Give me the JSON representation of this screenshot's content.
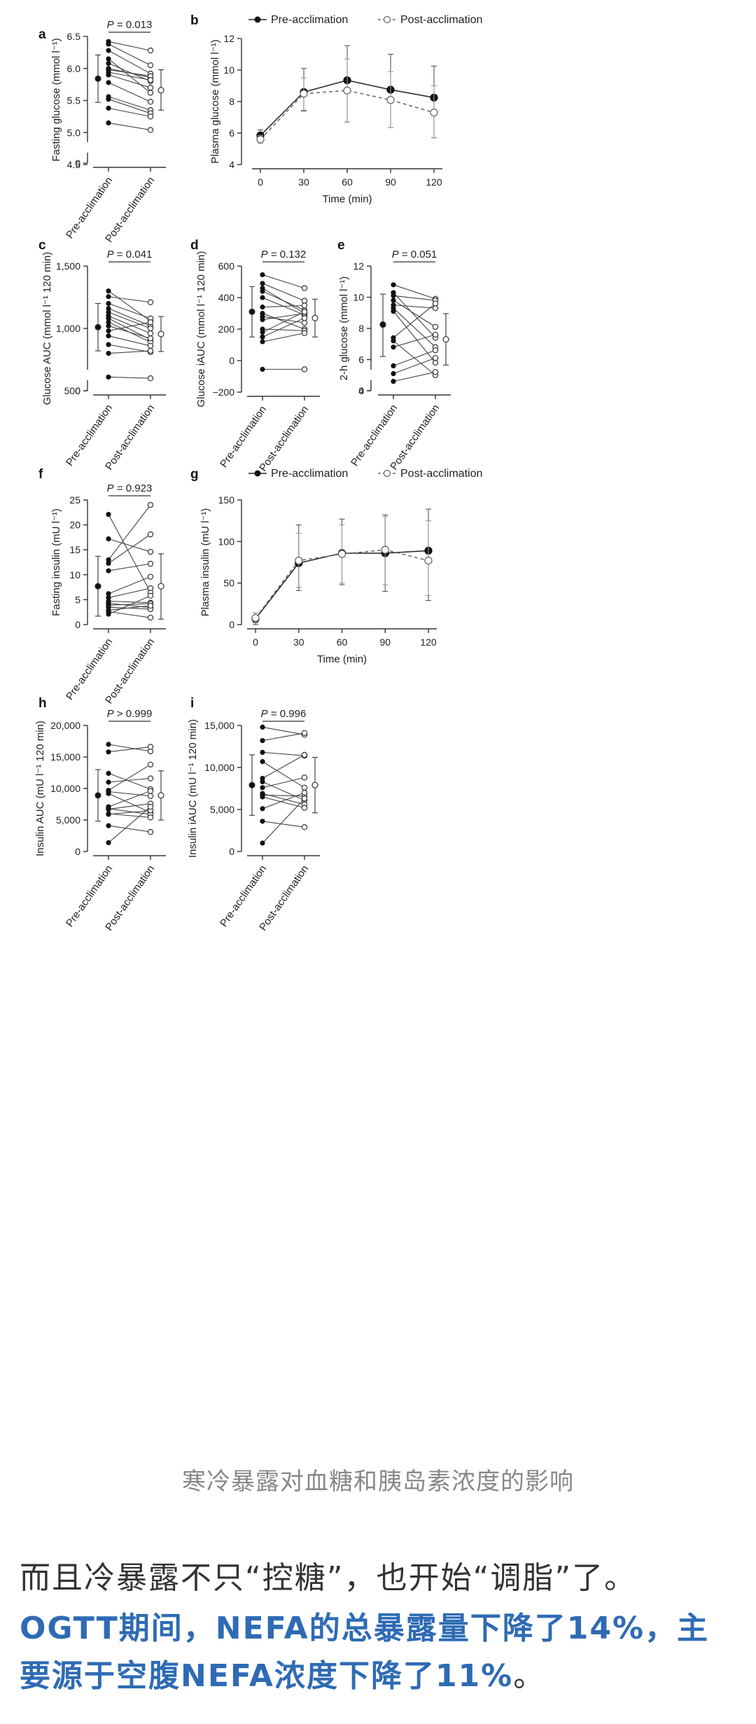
{
  "figure": {
    "x_categories": [
      "Pre-acclimation",
      "Post-acclimation"
    ],
    "legend_pre": "Pre-acclimation",
    "legend_post": "Post-acclimation"
  },
  "caption": "寒冷暴露对血糖和胰岛素浓度的影响",
  "paragraph1": "而且冷暴露不只“控糖”，也开始“调脂”了。",
  "paragraph2_highlight": "OGTT期间，NEFA的总暴露量下降了14%，主要源于空腹NEFA浓度下降了11%",
  "paragraph2_tail": "。",
  "chart_data": [
    {
      "panel": "a",
      "type": "paired_scatter",
      "ylabel": "Fasting glucose (mmol l⁻¹)",
      "p_label": "P = 0.013",
      "yticks": [
        "0",
        "4.5",
        "5.0",
        "5.5",
        "6.0",
        "6.5"
      ],
      "pre": [
        6.42,
        6.38,
        6.28,
        6.15,
        6.08,
        6.0,
        5.98,
        5.94,
        5.9,
        5.78,
        5.56,
        5.52,
        5.38,
        5.15
      ],
      "post": [
        6.28,
        6.05,
        5.92,
        5.62,
        5.8,
        5.86,
        5.88,
        5.82,
        5.7,
        5.48,
        5.35,
        5.3,
        5.25,
        5.04
      ],
      "pre_mean": 5.84,
      "pre_sd": [
        5.47,
        6.21
      ],
      "post_mean": 5.66,
      "post_sd": [
        5.35,
        5.98
      ]
    },
    {
      "panel": "b",
      "type": "line",
      "ylabel": "Plasma glucose (mmol l⁻¹)",
      "xlabel": "Time (min)",
      "ylim": [
        4,
        12
      ],
      "x": [
        0,
        30,
        60,
        90,
        120
      ],
      "yticks": [
        "4",
        "6",
        "8",
        "10",
        "12"
      ],
      "series": [
        {
          "name": "Pre-acclimation",
          "values": [
            5.85,
            8.6,
            9.35,
            8.75,
            8.25
          ],
          "err_lo": [
            5.55,
            7.4,
            6.7,
            6.35,
            5.7
          ],
          "err_hi": [
            6.2,
            10.1,
            11.55,
            11.0,
            10.25
          ]
        },
        {
          "name": "Post-acclimation",
          "values": [
            5.6,
            8.5,
            8.7,
            8.1,
            7.3
          ],
          "err_lo": [
            5.35,
            7.45,
            6.7,
            6.35,
            5.7
          ],
          "err_hi": [
            5.85,
            9.5,
            10.7,
            9.9,
            9.0
          ]
        }
      ]
    },
    {
      "panel": "c",
      "type": "paired_scatter",
      "ylabel": "Glucose AUC (mmol l⁻¹ 120 min)",
      "p_label": "P = 0.041",
      "yticks": [
        "0",
        "500",
        "1,000",
        "1,500"
      ],
      "pre": [
        1300,
        1255,
        1200,
        1160,
        1130,
        1100,
        1080,
        1050,
        1020,
        980,
        940,
        870,
        800,
        610
      ],
      "post": [
        1060,
        1210,
        1080,
        1020,
        1000,
        960,
        910,
        890,
        920,
        1050,
        860,
        810,
        820,
        600
      ],
      "pre_mean": 1010,
      "pre_sd": [
        820,
        1200
      ],
      "post_mean": 955,
      "post_sd": [
        815,
        1095
      ]
    },
    {
      "panel": "d",
      "type": "paired_scatter",
      "ylabel": "Glucose iAUC (mmol l⁻¹ 120 min)",
      "p_label": "P = 0.132",
      "yticks": [
        "−200",
        "0",
        "200",
        "400",
        "600"
      ],
      "pre": [
        545,
        490,
        460,
        440,
        400,
        340,
        300,
        280,
        260,
        200,
        180,
        150,
        120,
        -55
      ],
      "post": [
        460,
        380,
        300,
        320,
        290,
        350,
        200,
        240,
        300,
        190,
        310,
        270,
        175,
        -55
      ],
      "pre_mean": 310,
      "pre_sd": [
        150,
        470
      ],
      "post_mean": 270,
      "post_sd": [
        150,
        390
      ]
    },
    {
      "panel": "e",
      "type": "paired_scatter",
      "ylabel": "2-h glucose (mmol l⁻¹)",
      "p_label": "P = 0.051",
      "yticks": [
        "0",
        "4",
        "6",
        "8",
        "10",
        "12"
      ],
      "pre": [
        10.8,
        10.3,
        10.1,
        9.8,
        9.5,
        9.3,
        9.1,
        7.4,
        7.2,
        6.8,
        5.6,
        5.1,
        4.6
      ],
      "post": [
        9.9,
        7.4,
        9.8,
        8.1,
        9.3,
        6.8,
        5.8,
        9.6,
        5.0,
        7.6,
        6.6,
        6.1,
        5.2
      ],
      "pre_mean": 8.25,
      "pre_sd": [
        6.2,
        10.2
      ],
      "post_mean": 7.3,
      "post_sd": [
        5.65,
        8.95
      ]
    },
    {
      "panel": "f",
      "type": "paired_scatter",
      "ylabel": "Fasting insulin (mU l⁻¹)",
      "p_label": "P = 0.923",
      "yticks": [
        "0",
        "5",
        "10",
        "15",
        "20",
        "25"
      ],
      "pre": [
        22.1,
        17.2,
        13.0,
        12.3,
        10.8,
        6.2,
        5.4,
        4.7,
        4.3,
        3.9,
        3.5,
        2.9,
        2.6,
        2.1
      ],
      "post": [
        6.5,
        14.6,
        24.0,
        18.1,
        12.2,
        9.6,
        7.3,
        4.4,
        3.4,
        4.2,
        3.1,
        3.8,
        1.4,
        5.8
      ],
      "pre_mean": 7.7,
      "pre_sd": [
        1.7,
        13.7
      ],
      "post_mean": 7.7,
      "post_sd": [
        1.1,
        14.2
      ]
    },
    {
      "panel": "g",
      "type": "line",
      "ylabel": "Plasma insulin (mU l⁻¹)",
      "xlabel": "Time (min)",
      "ylim": [
        0,
        150
      ],
      "x": [
        0,
        30,
        60,
        90,
        120
      ],
      "yticks": [
        "0",
        "50",
        "100",
        "150"
      ],
      "series": [
        {
          "name": "Pre-acclimation",
          "values": [
            7,
            74,
            86,
            86,
            89
          ],
          "err_lo": [
            0,
            41,
            48,
            40,
            29
          ],
          "err_hi": [
            14,
            120,
            127,
            132,
            139
          ]
        },
        {
          "name": "Post-acclimation",
          "values": [
            8,
            77,
            85,
            90,
            77
          ],
          "err_lo": [
            2,
            45,
            50,
            48,
            35
          ],
          "err_hi": [
            14,
            110,
            120,
            130,
            125
          ]
        }
      ]
    },
    {
      "panel": "h",
      "type": "paired_scatter",
      "ylabel": "Insulin AUC (mU l⁻¹ 120 min)",
      "p_label": "P > 0.999",
      "yticks": [
        "0",
        "5,000",
        "10,000",
        "15,000",
        "20,000"
      ],
      "pre": [
        17000,
        15800,
        12400,
        11000,
        9700,
        9500,
        9200,
        7100,
        6800,
        6700,
        6000,
        5900,
        4100,
        1400
      ],
      "post": [
        15900,
        16600,
        9900,
        11600,
        13800,
        8800,
        6200,
        9600,
        5900,
        7600,
        5400,
        6500,
        3100,
        7100
      ],
      "pre_mean": 8900,
      "pre_sd": [
        4800,
        13000
      ],
      "post_mean": 8900,
      "post_sd": [
        5000,
        12800
      ]
    },
    {
      "panel": "i",
      "type": "paired_scatter",
      "ylabel": "Insulin iAUC (mU l⁻¹ 120 min)",
      "p_label": "P = 0.996",
      "yticks": [
        "0",
        "5,000",
        "10,000",
        "15,000"
      ],
      "pre": [
        14800,
        13200,
        11800,
        10700,
        8700,
        8300,
        7600,
        6900,
        6700,
        6500,
        5100,
        3600,
        1000
      ],
      "post": [
        13900,
        14100,
        11400,
        7600,
        11500,
        6100,
        8800,
        5600,
        6600,
        5200,
        7000,
        2900,
        6300
      ],
      "pre_mean": 7900,
      "pre_sd": [
        4300,
        11500
      ],
      "post_mean": 7900,
      "post_sd": [
        4600,
        11200
      ]
    }
  ]
}
